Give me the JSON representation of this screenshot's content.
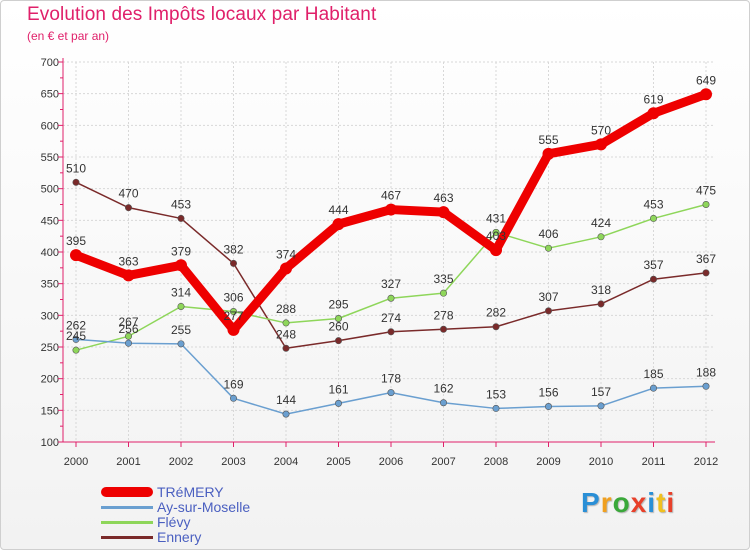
{
  "header": {
    "title": "Evolution des Impôts locaux par Habitant",
    "subtitle": "(en € et par an)"
  },
  "logo": {
    "text": "Proxiti",
    "colors": [
      "#2a8fd6",
      "#f0a020",
      "#3aa83a",
      "#e8402a",
      "#2a8fd6",
      "#f0c020",
      "#e8402a"
    ]
  },
  "chart_data": {
    "type": "line",
    "x": [
      "2000",
      "2001",
      "2002",
      "2003",
      "2004",
      "2005",
      "2006",
      "2007",
      "2008",
      "2009",
      "2010",
      "2011",
      "2012"
    ],
    "ylim": [
      100,
      700
    ],
    "yticks": [
      "100",
      "150",
      "200",
      "250",
      "300",
      "350",
      "400",
      "450",
      "500",
      "550",
      "600",
      "650",
      "700"
    ],
    "grid": true,
    "legend_position": "bottom-left",
    "series": [
      {
        "name": "TRéMERY",
        "color": "#ee0000",
        "values": [
          395,
          363,
          379,
          277,
          374,
          444,
          467,
          463,
          403,
          555,
          570,
          619,
          649
        ],
        "labels": [
          "395",
          "363",
          "379",
          "277",
          "374",
          "444",
          "467",
          "463",
          "403",
          "555",
          "570",
          "619",
          "649"
        ]
      },
      {
        "name": "Ay-sur-Moselle",
        "color": "#6a9fd0",
        "values": [
          262,
          256,
          255,
          169,
          144,
          161,
          178,
          162,
          153,
          156,
          157,
          185,
          188
        ],
        "labels": [
          "262",
          "256",
          "255",
          "169",
          "144",
          "161",
          "178",
          "162",
          "153",
          "156",
          "157",
          "185",
          "188"
        ]
      },
      {
        "name": "Flévy",
        "color": "#8ed65a",
        "values": [
          245,
          267,
          314,
          306,
          288,
          295,
          327,
          335,
          431,
          406,
          424,
          453,
          475
        ],
        "labels": [
          "245",
          "267",
          "314",
          "306",
          "288",
          "295",
          "327",
          "335",
          "431",
          "406",
          "424",
          "453",
          "475"
        ]
      },
      {
        "name": "Ennery",
        "color": "#7a2a2a",
        "values": [
          510,
          470,
          453,
          382,
          248,
          260,
          274,
          278,
          282,
          307,
          318,
          357,
          367
        ],
        "labels": [
          "510",
          "470",
          "453",
          "382",
          "248",
          "260",
          "274",
          "278",
          "282",
          "307",
          "318",
          "357",
          "367"
        ]
      }
    ]
  }
}
